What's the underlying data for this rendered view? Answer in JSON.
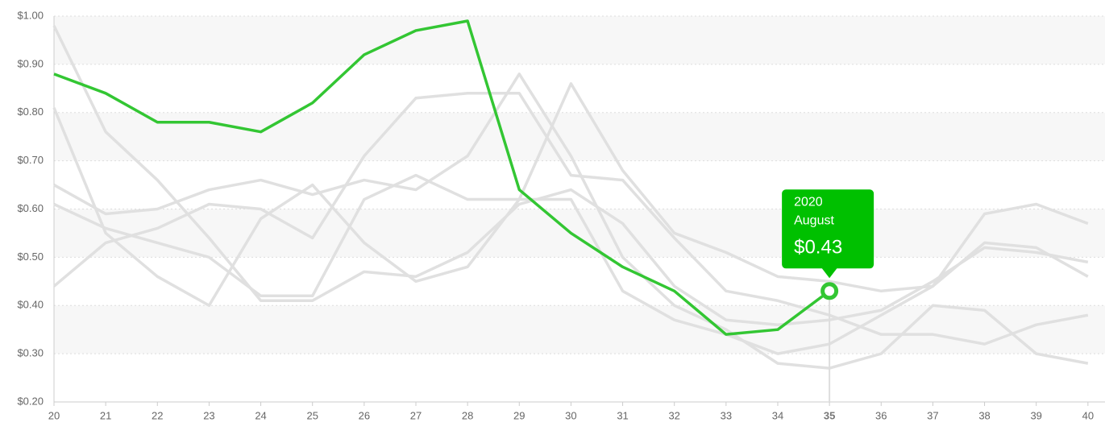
{
  "chart_data": {
    "type": "line",
    "x": [
      20,
      21,
      22,
      23,
      24,
      25,
      26,
      27,
      28,
      29,
      30,
      31,
      32,
      33,
      34,
      35,
      36,
      37,
      38,
      39,
      40
    ],
    "xlim": [
      20,
      40.33
    ],
    "xticks": [
      20,
      21,
      22,
      23,
      24,
      25,
      26,
      27,
      28,
      29,
      30,
      31,
      32,
      33,
      34,
      35,
      36,
      37,
      38,
      39,
      40
    ],
    "ylim": [
      0.2,
      1.0
    ],
    "yticks": [
      {
        "value": 0.2,
        "label": "$0.20"
      },
      {
        "value": 0.3,
        "label": "$0.30"
      },
      {
        "value": 0.4,
        "label": "$0.40"
      },
      {
        "value": 0.5,
        "label": "$0.50"
      },
      {
        "value": 0.6,
        "label": "$0.60"
      },
      {
        "value": 0.7,
        "label": "$0.70"
      },
      {
        "value": 0.8,
        "label": "$0.80"
      },
      {
        "value": 0.9,
        "label": "$0.90"
      },
      {
        "value": 1.0,
        "label": "$1.00"
      }
    ],
    "grid": true,
    "series": [
      {
        "color": "#33c633",
        "values": [
          0.88,
          0.84,
          0.78,
          0.78,
          0.76,
          0.82,
          0.92,
          0.97,
          0.99,
          0.64,
          0.55,
          0.48,
          0.43,
          0.34,
          0.35,
          0.43,
          null,
          null,
          null,
          null,
          null
        ]
      },
      {
        "color": "#e0e0e0",
        "values": [
          0.98,
          0.76,
          0.66,
          0.54,
          0.41,
          0.41,
          0.47,
          0.46,
          0.51,
          0.61,
          0.64,
          0.57,
          0.44,
          0.37,
          0.36,
          0.37,
          0.39,
          0.45,
          0.52,
          0.51,
          0.49
        ]
      },
      {
        "color": "#e0e0e0",
        "values": [
          0.81,
          0.55,
          0.46,
          0.4,
          0.58,
          0.65,
          0.53,
          0.45,
          0.48,
          0.62,
          0.62,
          0.43,
          0.37,
          0.34,
          0.3,
          0.32,
          0.38,
          0.44,
          0.53,
          0.52,
          0.46
        ]
      },
      {
        "color": "#e0e0e0",
        "values": [
          0.65,
          0.59,
          0.6,
          0.64,
          0.66,
          0.63,
          0.66,
          0.64,
          0.71,
          0.88,
          0.71,
          0.5,
          0.4,
          0.35,
          0.28,
          0.27,
          0.3,
          0.4,
          0.39,
          0.3,
          0.28
        ]
      },
      {
        "color": "#e0e0e0",
        "values": [
          0.61,
          0.56,
          0.53,
          0.5,
          0.42,
          0.42,
          0.62,
          0.67,
          0.62,
          0.62,
          0.86,
          0.68,
          0.55,
          0.51,
          0.46,
          0.45,
          0.43,
          0.44,
          0.59,
          0.61,
          0.57
        ]
      },
      {
        "color": "#e0e0e0",
        "values": [
          0.44,
          0.53,
          0.56,
          0.61,
          0.6,
          0.54,
          0.71,
          0.83,
          0.84,
          0.84,
          0.67,
          0.66,
          0.54,
          0.43,
          0.41,
          0.38,
          0.34,
          0.34,
          0.32,
          0.36,
          0.38
        ]
      }
    ],
    "tooltip": {
      "x": 35,
      "series": 0,
      "lines": [
        "2020",
        "August"
      ],
      "value_label": "$0.43",
      "color": "#00c000"
    }
  }
}
